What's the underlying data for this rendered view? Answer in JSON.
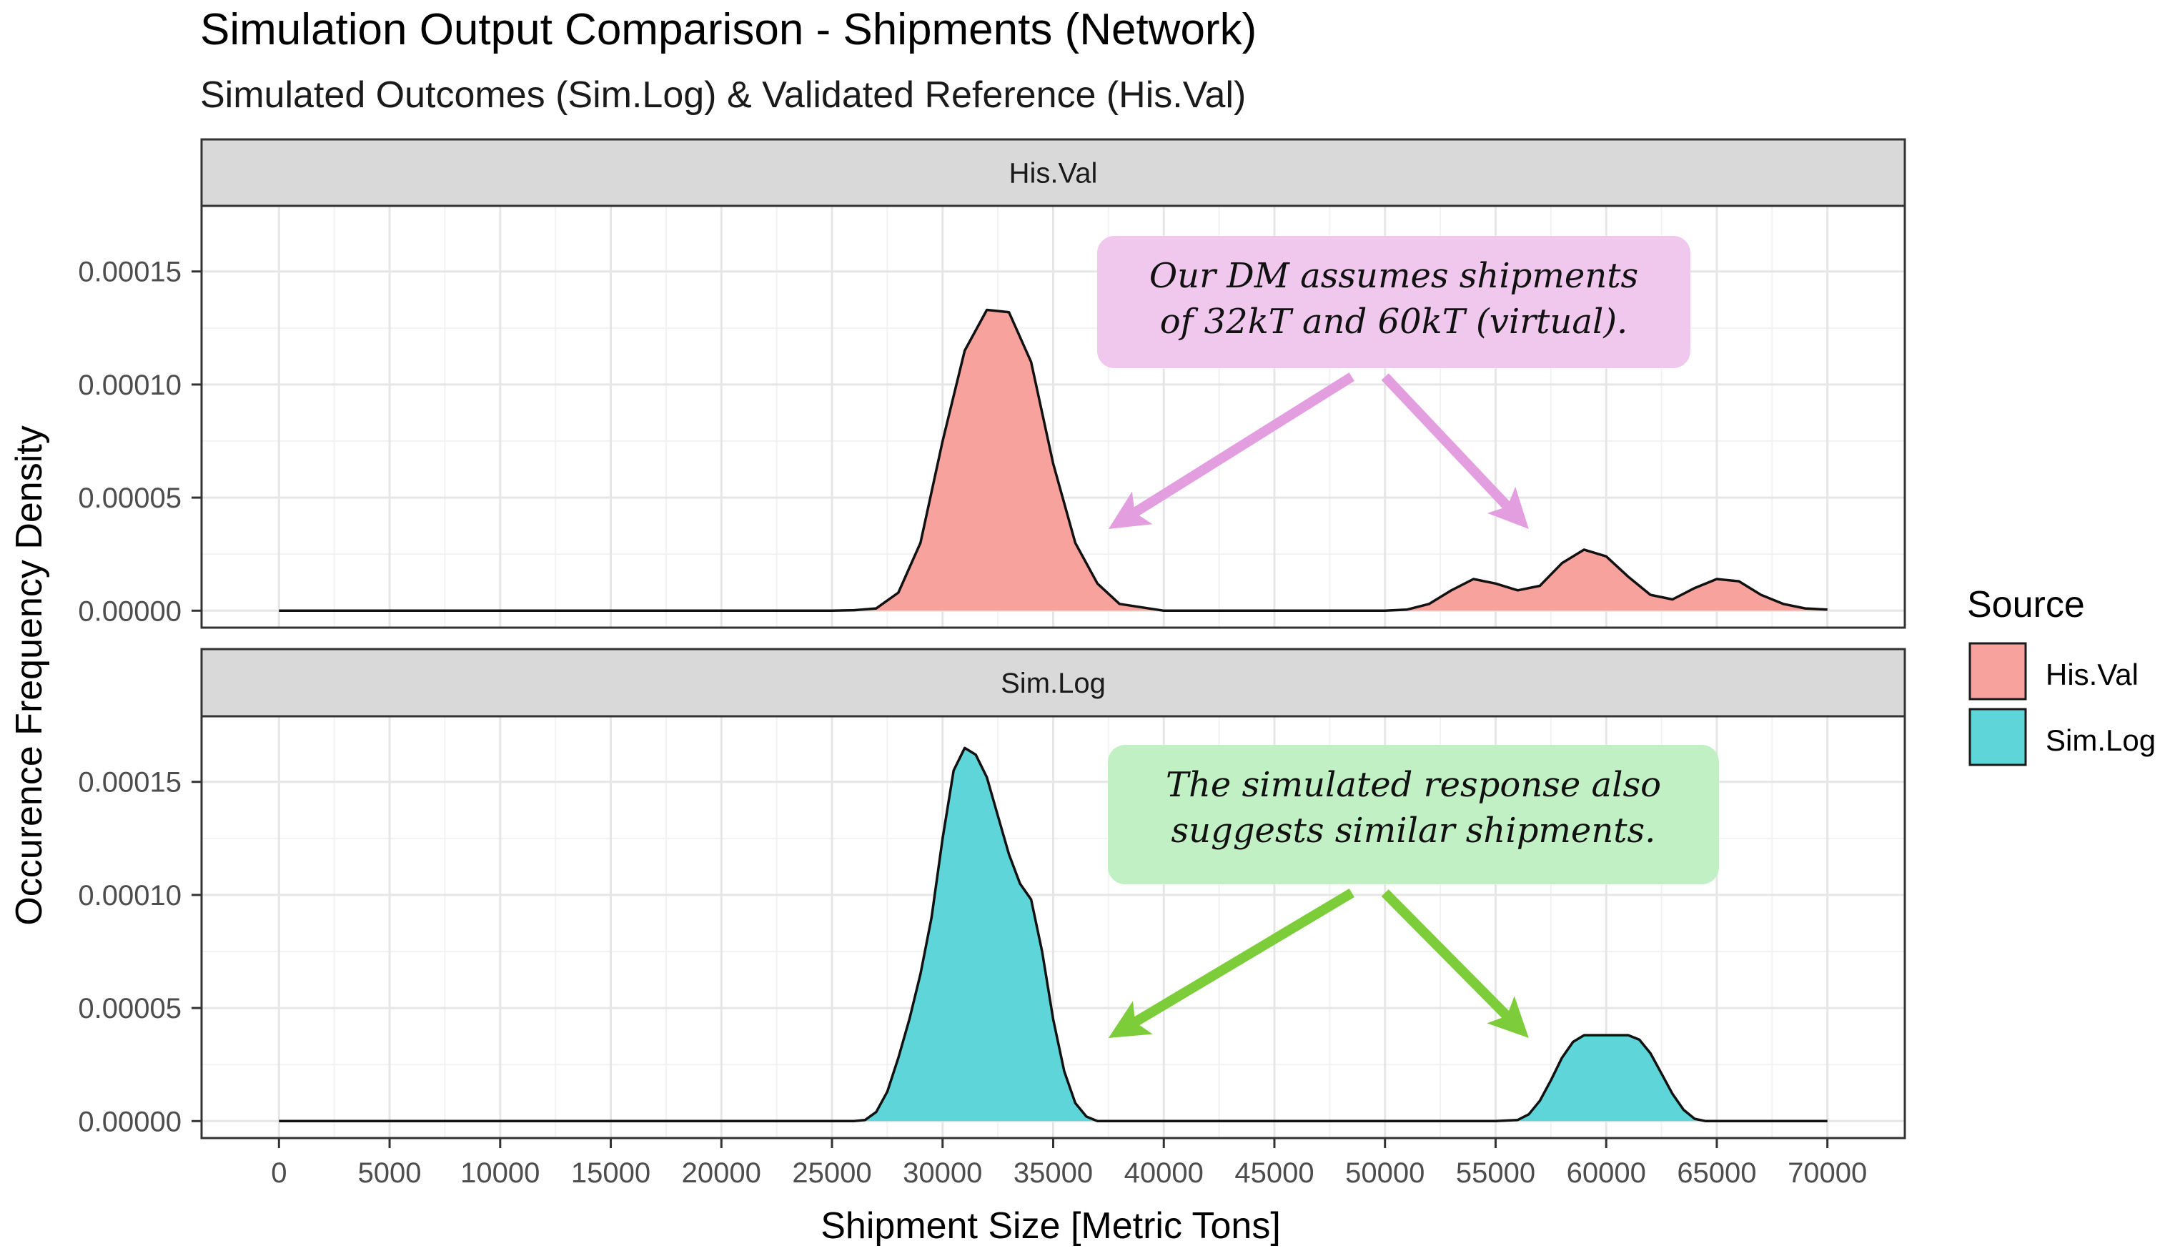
{
  "chart_data": {
    "type": "area",
    "title": "Simulation Output Comparison - Shipments (Network)",
    "subtitle": "Simulated Outcomes (Sim.Log) & Validated Reference (His.Val)",
    "xlabel": "Shipment Size [Metric Tons]",
    "ylabel": "Occurence Frequency Density",
    "xlim": [
      -3500,
      73500
    ],
    "ylim": [
      -7.5e-06,
      0.000179
    ],
    "x_ticks": [
      0,
      5000,
      10000,
      15000,
      20000,
      25000,
      30000,
      35000,
      40000,
      45000,
      50000,
      55000,
      60000,
      65000,
      70000
    ],
    "x_tick_labels": [
      "0",
      "5000",
      "10000",
      "15000",
      "20000",
      "25000",
      "30000",
      "35000",
      "40000",
      "45000",
      "50000",
      "55000",
      "60000",
      "65000",
      "70000"
    ],
    "y_ticks": [
      0,
      5e-05,
      0.0001,
      0.00015
    ],
    "y_tick_labels": [
      "0.00000",
      "0.00005",
      "0.00010",
      "0.00015"
    ],
    "legend": {
      "title": "Source",
      "position": "right",
      "entries": [
        {
          "label": "His.Val",
          "color": "#f8a29d"
        },
        {
          "label": "Sim.Log",
          "color": "#5ed5d8"
        }
      ]
    },
    "series": [
      {
        "name": "His.Val",
        "panel": "His.Val",
        "color": "#f8a29d",
        "x": [
          0,
          5000,
          10000,
          15000,
          20000,
          25000,
          26000,
          27000,
          28000,
          29000,
          30000,
          31000,
          32000,
          33000,
          34000,
          35000,
          36000,
          37000,
          38000,
          40000,
          45000,
          50000,
          51000,
          52000,
          53000,
          54000,
          55000,
          56000,
          57000,
          58000,
          59000,
          60000,
          61000,
          62000,
          63000,
          64000,
          65000,
          66000,
          67000,
          68000,
          69000,
          70000
        ],
        "values": [
          0,
          0,
          0,
          0,
          0,
          0,
          2e-07,
          1e-06,
          8e-06,
          3e-05,
          7.5e-05,
          0.000115,
          0.000133,
          0.000132,
          0.00011,
          6.5e-05,
          3e-05,
          1.2e-05,
          3e-06,
          0,
          0,
          0,
          5e-07,
          3e-06,
          9e-06,
          1.4e-05,
          1.2e-05,
          9e-06,
          1.1e-05,
          2.1e-05,
          2.7e-05,
          2.4e-05,
          1.5e-05,
          7e-06,
          5e-06,
          1e-05,
          1.4e-05,
          1.3e-05,
          7e-06,
          3e-06,
          1e-06,
          5e-07
        ]
      },
      {
        "name": "Sim.Log",
        "panel": "Sim.Log",
        "color": "#5ed5d8",
        "x": [
          0,
          5000,
          10000,
          15000,
          20000,
          25000,
          26000,
          26500,
          27000,
          27500,
          28000,
          28500,
          29000,
          29500,
          30000,
          30500,
          31000,
          31500,
          32000,
          32500,
          33000,
          33500,
          34000,
          34500,
          35000,
          35500,
          36000,
          36500,
          37000,
          40000,
          45000,
          50000,
          55000,
          56000,
          56500,
          57000,
          57500,
          58000,
          58500,
          59000,
          59500,
          60000,
          60500,
          61000,
          61500,
          62000,
          62500,
          63000,
          63500,
          64000,
          64500,
          65000,
          70000
        ],
        "values": [
          0,
          0,
          0,
          0,
          0,
          0,
          0,
          5e-07,
          4e-06,
          1.3e-05,
          2.8e-05,
          4.5e-05,
          6.5e-05,
          9e-05,
          0.000125,
          0.000155,
          0.000165,
          0.000162,
          0.000152,
          0.000135,
          0.000118,
          0.000105,
          9.8e-05,
          7.5e-05,
          4.5e-05,
          2.2e-05,
          8e-06,
          2e-06,
          0,
          0,
          0,
          0,
          0,
          5e-07,
          3e-06,
          9e-06,
          1.8e-05,
          2.8e-05,
          3.5e-05,
          3.8e-05,
          3.8e-05,
          3.8e-05,
          3.8e-05,
          3.8e-05,
          3.6e-05,
          3e-05,
          2.1e-05,
          1.2e-05,
          5e-06,
          1e-06,
          0,
          0,
          0
        ]
      }
    ],
    "panels": [
      {
        "label": "His.Val"
      },
      {
        "label": "Sim.Log"
      }
    ],
    "annotations": [
      {
        "panel": "His.Val",
        "lines": [
          "Our DM assumes shipments",
          "of 32kT and 60kT (virtual)."
        ],
        "box_color": "#f0c8ee",
        "arrow_color": "#e39ee0",
        "targets_x": [
          37500,
          56500
        ]
      },
      {
        "panel": "Sim.Log",
        "lines": [
          "The simulated response also",
          "suggests similar shipments."
        ],
        "box_color": "#c2f0c5",
        "arrow_color": "#7dcc3a",
        "targets_x": [
          37500,
          56500
        ]
      }
    ]
  }
}
